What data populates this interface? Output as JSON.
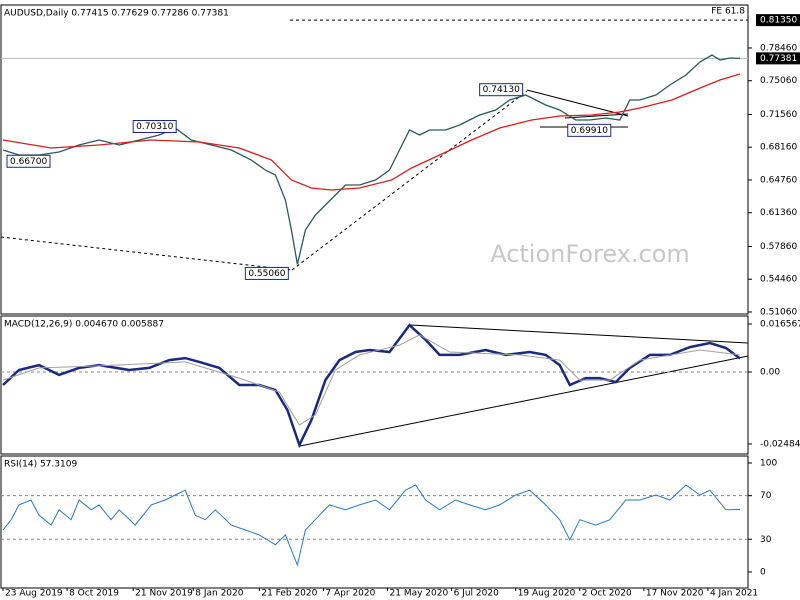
{
  "chart_data": [
    {
      "type": "line",
      "title": "AUDUSD,Daily  0.77415 0.77629 0.77286 0.77381",
      "watermark": "ActionForex.com",
      "xlim": [
        -1,
        372
      ],
      "ylim": [
        0.5085,
        0.8292
      ],
      "grid": false,
      "yticks": [
        {
          "value": 0.5106,
          "label": "0.51060"
        },
        {
          "value": 0.5446,
          "label": "0.54460"
        },
        {
          "value": 0.5786,
          "label": "0.57860"
        },
        {
          "value": 0.6136,
          "label": "0.61360"
        },
        {
          "value": 0.6476,
          "label": "0.64760"
        },
        {
          "value": 0.6816,
          "label": "0.68160"
        },
        {
          "value": 0.7156,
          "label": "0.71560"
        },
        {
          "value": 0.7506,
          "label": "0.75060"
        },
        {
          "value": 0.7846,
          "label": "0.78460"
        }
      ],
      "series": [
        {
          "color": "#2b5a5a",
          "x": [
            0,
            8,
            18,
            28,
            38,
            48,
            58,
            68,
            78,
            86,
            94,
            104,
            114,
            124,
            131,
            136,
            141,
            144,
            147,
            151,
            156,
            161,
            166,
            171,
            178,
            186,
            193,
            198,
            203,
            208,
            213,
            221,
            228,
            233,
            238,
            246,
            253,
            261,
            266,
            271,
            278,
            286,
            293,
            301,
            308,
            313,
            318,
            326,
            333,
            341,
            348,
            354,
            358,
            363,
            368
          ],
          "values": [
            0.6787,
            0.6735,
            0.6735,
            0.6766,
            0.6839,
            0.6891,
            0.6839,
            0.6891,
            0.6943,
            0.7015,
            0.6891,
            0.6839,
            0.6787,
            0.6683,
            0.6579,
            0.6528,
            0.6268,
            0.5957,
            0.56,
            0.5957,
            0.6112,
            0.6216,
            0.632,
            0.6424,
            0.6424,
            0.6476,
            0.6579,
            0.6787,
            0.6995,
            0.6943,
            0.6995,
            0.6995,
            0.7047,
            0.7098,
            0.715,
            0.7202,
            0.7306,
            0.7358,
            0.7306,
            0.7254,
            0.7202,
            0.7098,
            0.7098,
            0.7119,
            0.7098,
            0.7306,
            0.7306,
            0.7358,
            0.7462,
            0.7565,
            0.77,
            0.7773,
            0.7721,
            0.7742,
            0.7738
          ]
        },
        {
          "color": "#d62020",
          "x": [
            0,
            24,
            48,
            74,
            98,
            118,
            134,
            144,
            154,
            164,
            178,
            194,
            204,
            218,
            234,
            248,
            264,
            278,
            294,
            308,
            318,
            334,
            348,
            358,
            368
          ],
          "values": [
            0.6891,
            0.6808,
            0.6839,
            0.6891,
            0.687,
            0.6808,
            0.6683,
            0.6476,
            0.6393,
            0.6372,
            0.6393,
            0.6476,
            0.66,
            0.6735,
            0.6891,
            0.7015,
            0.7098,
            0.714,
            0.715,
            0.7181,
            0.7223,
            0.7306,
            0.743,
            0.7514,
            0.7576
          ]
        }
      ],
      "levels": [
        {
          "name": "FE 61.8",
          "value": 0.8135,
          "label": "0.81350"
        }
      ],
      "last": {
        "value": 0.77381,
        "label": "0.77381"
      },
      "annotations": [
        {
          "x": 2,
          "value": 0.667,
          "label": "0.66700"
        },
        {
          "x": 65,
          "value": 0.7031,
          "label": "0.70310"
        },
        {
          "x": 121,
          "value": 0.5506,
          "label": "0.55060"
        },
        {
          "x": 238,
          "value": 0.7413,
          "label": "0.74130"
        },
        {
          "x": 282,
          "value": 0.6991,
          "label": "0.69910"
        }
      ]
    },
    {
      "type": "line",
      "title": "MACD(12,26,9) 0.004670 0.005887",
      "xlim": [
        -1,
        372
      ],
      "ylim": [
        -0.0283,
        0.01933
      ],
      "grid": "inner-dashed",
      "yticks": [
        -0.02484,
        {
          "value": 0,
          "label": "0.00"
        },
        0.016567
      ],
      "series": [
        {
          "color": "#1a2a80",
          "width": 2.5,
          "x": [
            0,
            8,
            18,
            28,
            38,
            48,
            63,
            73,
            83,
            91,
            98,
            108,
            118,
            128,
            136,
            142,
            148,
            154,
            161,
            168,
            176,
            183,
            193,
            203,
            211,
            218,
            228,
            241,
            251,
            263,
            271,
            278,
            283,
            291,
            298,
            306,
            313,
            323,
            333,
            343,
            353,
            361,
            368
          ],
          "values": [
            -0.0045,
            0.0007,
            0.0024,
            -0.001,
            0.0014,
            0.0024,
            0.0007,
            0.0014,
            0.0041,
            0.0048,
            0.0035,
            0.0014,
            -0.0045,
            -0.0045,
            -0.0062,
            -0.0131,
            -0.0252,
            -0.0166,
            -0.0028,
            0.0041,
            0.0069,
            0.0076,
            0.0069,
            0.0162,
            0.0111,
            0.0059,
            0.0059,
            0.0076,
            0.0059,
            0.0069,
            0.0059,
            0.0024,
            -0.0045,
            -0.0021,
            -0.0021,
            -0.0035,
            0.0014,
            0.0059,
            0.0059,
            0.0086,
            0.01,
            0.0083,
            0.00467
          ]
        },
        {
          "color": "#a0a0a0",
          "width": 1,
          "x": [
            0,
            18,
            48,
            91,
            118,
            138,
            148,
            156,
            166,
            178,
            198,
            208,
            223,
            258,
            278,
            288,
            303,
            318,
            348,
            368
          ],
          "values": [
            -0.0028,
            0.0014,
            0.0021,
            0.0035,
            -0.0021,
            -0.0069,
            -0.0183,
            -0.0148,
            0.0007,
            0.0059,
            0.0093,
            0.0128,
            0.0069,
            0.0059,
            0.0041,
            -0.0028,
            -0.0028,
            0.0041,
            0.0076,
            0.005887
          ]
        }
      ]
    },
    {
      "type": "line",
      "title": "RSI(14) 57.3109",
      "xlim": [
        -1,
        372
      ],
      "ylim": [
        -14.7,
        106.4
      ],
      "grid": "inner-dashed",
      "yticks": [
        0,
        30,
        70,
        100
      ],
      "xticks": [
        {
          "value": 0,
          "label": "23 Aug 2019"
        },
        {
          "value": 32,
          "label": "8 Oct 2019"
        },
        {
          "value": 65,
          "label": "21 Nov 2019"
        },
        {
          "value": 95,
          "label": "8 Jan 2020"
        },
        {
          "value": 128,
          "label": "21 Feb 2020"
        },
        {
          "value": 160,
          "label": "7 Apr 2020"
        },
        {
          "value": 192,
          "label": "21 May 2020"
        },
        {
          "value": 224,
          "label": "6 Jul 2020"
        },
        {
          "value": 256,
          "label": "19 Aug 2020"
        },
        {
          "value": 288,
          "label": "2 Oct 2020"
        },
        {
          "value": 320,
          "label": "17 Nov 2020"
        },
        {
          "value": 352,
          "label": "4 Jan 2021"
        }
      ],
      "series": [
        {
          "color": "#2a78c8",
          "width": 1,
          "x": [
            0,
            4,
            8,
            14,
            18,
            24,
            28,
            34,
            38,
            44,
            48,
            54,
            58,
            66,
            74,
            81,
            86,
            91,
            96,
            101,
            106,
            114,
            121,
            128,
            136,
            141,
            147,
            151,
            158,
            163,
            171,
            178,
            186,
            193,
            201,
            206,
            211,
            218,
            226,
            233,
            241,
            248,
            256,
            263,
            271,
            278,
            283,
            288,
            296,
            303,
            311,
            318,
            326,
            333,
            341,
            348,
            353,
            361,
            368
          ],
          "values": [
            38.5,
            47.7,
            61.5,
            66,
            52,
            43,
            57,
            48,
            66,
            57,
            61.5,
            48,
            57,
            43,
            61.5,
            66,
            70.6,
            75,
            52,
            48,
            57,
            43,
            38.5,
            34,
            25,
            34,
            6.4,
            38.5,
            52,
            61.5,
            57,
            61.5,
            66,
            57,
            75,
            79.8,
            66,
            57,
            66,
            61.5,
            57,
            61.5,
            70.6,
            75,
            61.5,
            48,
            29.4,
            48,
            43,
            48,
            66,
            66,
            70.6,
            66,
            79.8,
            70.6,
            75,
            57,
            57.31
          ]
        }
      ]
    }
  ]
}
